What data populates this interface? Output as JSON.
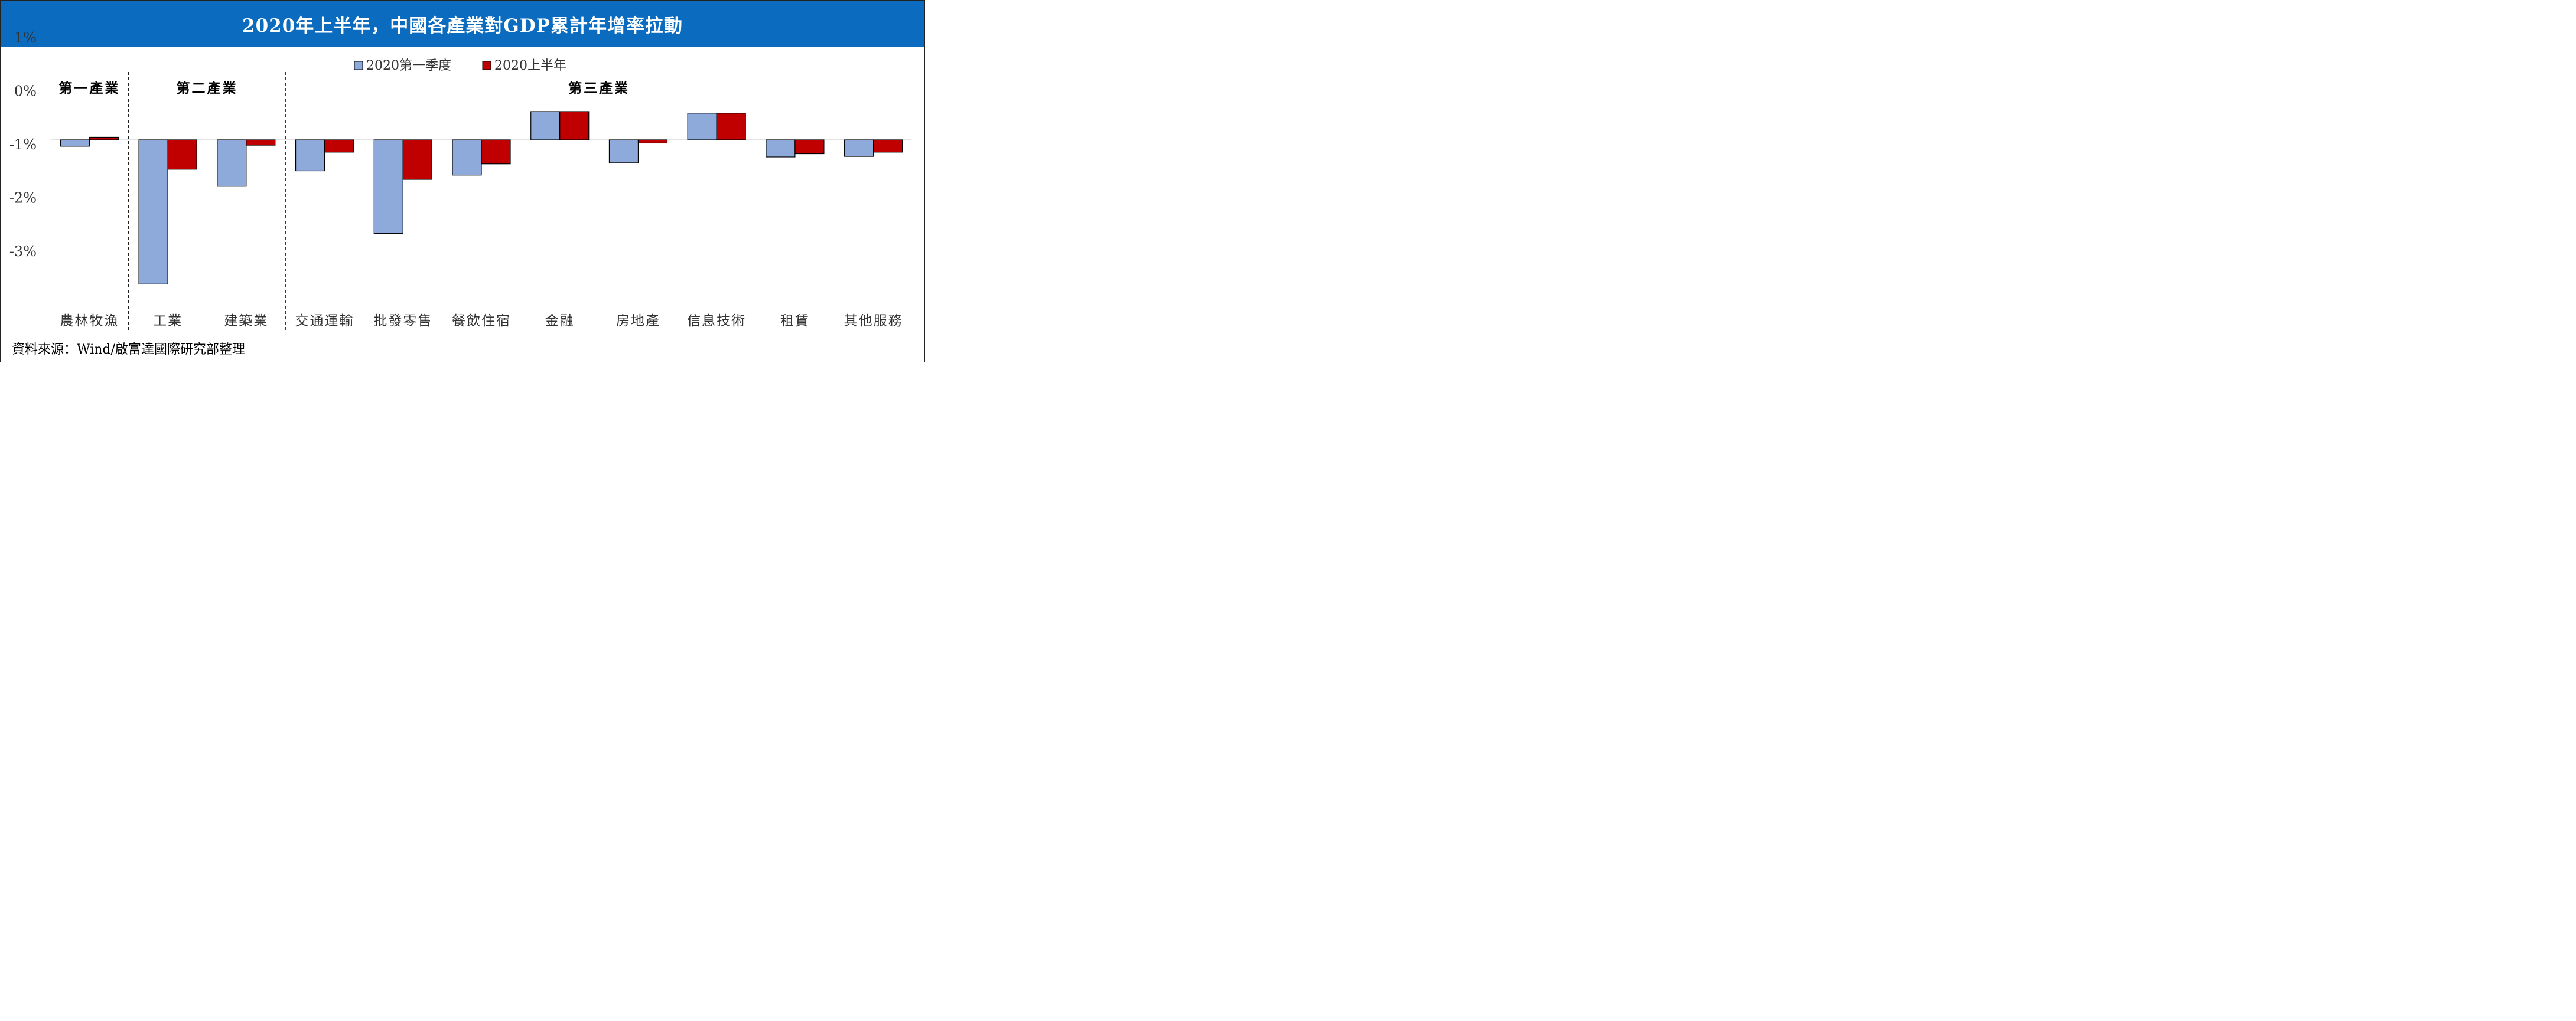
{
  "title": "2020年上半年，中國各產業對GDP累計年增率拉動",
  "source": "資料來源：Wind/啟富達國際研究部整理",
  "colors": {
    "series1": "#8eaadb",
    "series2": "#c00000",
    "title_bg": "#0b6bbf",
    "zero_line": "#d9d9d9"
  },
  "chart_data": {
    "type": "bar",
    "categories": [
      "農林牧漁",
      "工業",
      "建築業",
      "交通運輸",
      "批發零售",
      "餐飲住宿",
      "金融",
      "房地產",
      "信息技術",
      "租賃",
      "其他服務"
    ],
    "series": [
      {
        "name": "2020第一季度",
        "values": [
          -0.12,
          -2.7,
          -0.87,
          -0.58,
          -1.75,
          -0.66,
          0.53,
          -0.43,
          0.5,
          -0.32,
          -0.31
        ]
      },
      {
        "name": "2020上半年",
        "values": [
          0.05,
          -0.55,
          -0.1,
          -0.23,
          -0.74,
          -0.45,
          0.53,
          -0.06,
          0.5,
          -0.26,
          -0.23
        ]
      }
    ],
    "y_ticks": [
      "1%",
      "0%",
      "-1%",
      "-2%",
      "-3%"
    ],
    "y_tick_values": [
      1,
      0,
      -1,
      -2,
      -3
    ],
    "ylim": [
      -3,
      1
    ],
    "groups": [
      {
        "label": "第一產業",
        "span": [
          0,
          0
        ]
      },
      {
        "label": "第二產業",
        "span": [
          1,
          2
        ]
      },
      {
        "label": "第三產業",
        "span": [
          3,
          10
        ]
      }
    ],
    "legend_position": "top-center",
    "grid": false
  }
}
